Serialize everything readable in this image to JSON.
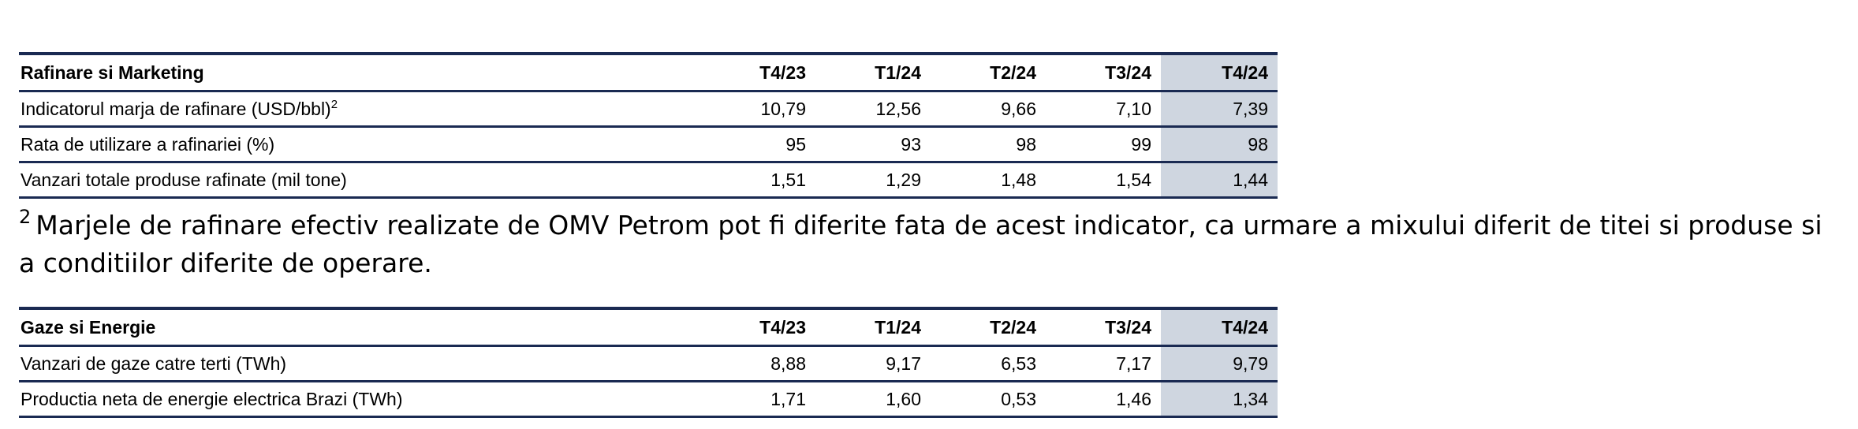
{
  "table1": {
    "title": "Rafinare si Marketing",
    "columns": [
      "T4/23",
      "T1/24",
      "T2/24",
      "T3/24",
      "T4/24"
    ],
    "rows": [
      {
        "label": "Indicatorul marja de rafinare (USD/bbl)",
        "sup": "2",
        "values": [
          "10,79",
          "12,56",
          "9,66",
          "7,10",
          "7,39"
        ]
      },
      {
        "label": "Rata de utilizare a rafinariei (%)",
        "sup": "",
        "values": [
          "95",
          "93",
          "98",
          "99",
          "98"
        ]
      },
      {
        "label": "Vanzari totale produse rafinate (mil tone)",
        "sup": "",
        "values": [
          "1,51",
          "1,29",
          "1,48",
          "1,54",
          "1,44"
        ]
      }
    ]
  },
  "footnote": {
    "marker": "2",
    "text": "Marjele de rafinare efectiv realizate de OMV Petrom pot fi diferite fata de acest indicator, ca urmare a mixului diferit de titei si produse si a conditiilor diferite de operare."
  },
  "table2": {
    "title": "Gaze si Energie",
    "columns": [
      "T4/23",
      "T1/24",
      "T2/24",
      "T3/24",
      "T4/24"
    ],
    "rows": [
      {
        "label": "Vanzari de gaze catre terti (TWh)",
        "sup": "",
        "values": [
          "8,88",
          "9,17",
          "6,53",
          "7,17",
          "9,79"
        ]
      },
      {
        "label": "Productia neta de energie electrica Brazi (TWh)",
        "sup": "",
        "values": [
          "1,71",
          "1,60",
          "0,53",
          "1,46",
          "1,34"
        ]
      }
    ]
  },
  "colors": {
    "rule": "#1a2a52",
    "highlight_column": "#cfd6e0"
  }
}
